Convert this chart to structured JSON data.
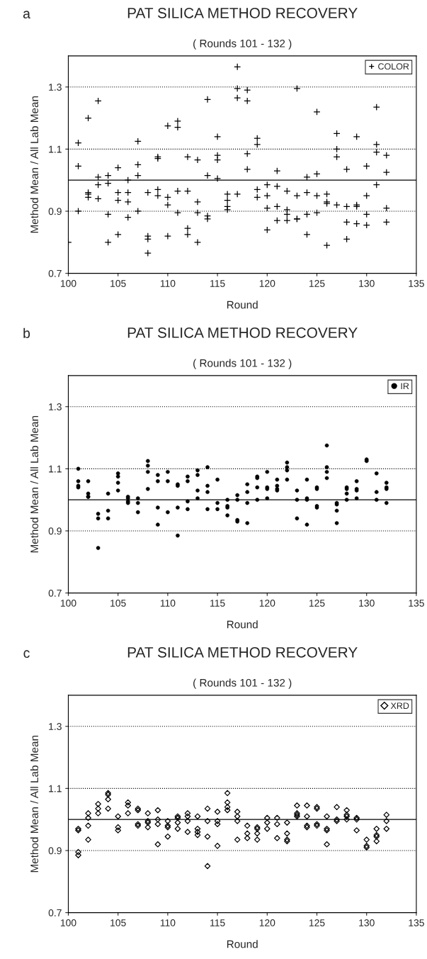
{
  "chart_data": [
    {
      "type": "scatter",
      "title": "PAT SILICA METHOD RECOVERY",
      "subtitle": "( Rounds 101 - 132 )",
      "xlabel": "Round",
      "ylabel": "Method Mean / All Lab Mean",
      "annotations": [
        "a"
      ],
      "xlim": [
        100,
        135
      ],
      "xticks": [
        100,
        105,
        110,
        115,
        120,
        125,
        130,
        135
      ],
      "ylim": [
        0.7,
        1.4
      ],
      "yticks": [
        0.7,
        0.9,
        1.1,
        1.3
      ],
      "grid": "y",
      "legend": "top right",
      "marker": "cross",
      "ref_lines": [
        {
          "axis": "y",
          "value": 1.0,
          "line_style": "solid",
          "color": "#000000"
        }
      ],
      "series": [
        {
          "name": "COLOR",
          "color": "#000000",
          "x": [
            100,
            101,
            101,
            101,
            102,
            102,
            102,
            102,
            103,
            103,
            103,
            103,
            104,
            104,
            104,
            104,
            105,
            105,
            105,
            105,
            106,
            106,
            106,
            106,
            107,
            107,
            107,
            107,
            108,
            108,
            108,
            108,
            109,
            109,
            109,
            109,
            110,
            110,
            110,
            110,
            111,
            111,
            111,
            111,
            112,
            112,
            112,
            112,
            113,
            113,
            113,
            113,
            114,
            114,
            114,
            114,
            115,
            115,
            115,
            115,
            116,
            116,
            116,
            116,
            117,
            117,
            117,
            117,
            118,
            118,
            118,
            118,
            119,
            119,
            119,
            119,
            120,
            120,
            120,
            120,
            121,
            121,
            121,
            121,
            122,
            122,
            122,
            122,
            123,
            123,
            123,
            123,
            124,
            124,
            124,
            124,
            125,
            125,
            125,
            125,
            126,
            126,
            126,
            126,
            127,
            127,
            127,
            127,
            128,
            128,
            128,
            128,
            129,
            129,
            129,
            129,
            130,
            130,
            130,
            130,
            131,
            131,
            131,
            131,
            132,
            132,
            132,
            132
          ],
          "values": [
            0.8,
            1.12,
            1.045,
            0.9,
            1.2,
            0.96,
            0.955,
            0.945,
            1.255,
            1.01,
            0.985,
            0.94,
            1.015,
            0.99,
            0.89,
            0.8,
            1.04,
            0.96,
            0.935,
            0.825,
            1.0,
            0.96,
            0.93,
            0.88,
            1.125,
            1.05,
            1.015,
            0.9,
            0.96,
            0.82,
            0.81,
            0.765,
            1.075,
            1.07,
            0.97,
            0.95,
            1.175,
            0.945,
            0.92,
            0.82,
            1.19,
            1.17,
            0.965,
            0.895,
            1.075,
            0.965,
            0.845,
            0.825,
            1.065,
            0.93,
            0.895,
            0.8,
            1.26,
            1.015,
            0.885,
            0.875,
            1.14,
            1.08,
            1.065,
            1.005,
            0.955,
            0.935,
            0.915,
            0.905,
            1.365,
            1.295,
            1.265,
            0.955,
            1.29,
            1.255,
            1.085,
            1.035,
            1.135,
            1.115,
            0.97,
            0.945,
            0.985,
            0.95,
            0.91,
            0.84,
            1.03,
            0.98,
            0.915,
            0.87,
            0.965,
            0.905,
            0.89,
            0.87,
            1.295,
            0.95,
            0.875,
            0.875,
            1.01,
            0.96,
            0.89,
            0.825,
            1.22,
            1.02,
            0.95,
            0.895,
            0.955,
            0.93,
            0.925,
            0.79,
            1.15,
            1.1,
            1.075,
            0.92,
            1.035,
            0.915,
            0.865,
            0.81,
            1.14,
            0.92,
            0.915,
            0.86,
            1.045,
            0.95,
            0.89,
            0.855,
            1.235,
            1.115,
            1.09,
            0.985,
            1.08,
            1.025,
            0.91,
            0.865
          ]
        }
      ]
    },
    {
      "type": "scatter",
      "title": "PAT SILICA METHOD RECOVERY",
      "subtitle": "( Rounds 101 - 132 )",
      "xlabel": "Round",
      "ylabel": "Method Mean / All Lab Mean",
      "annotations": [
        "b"
      ],
      "xlim": [
        100,
        135
      ],
      "xticks": [
        100,
        105,
        110,
        115,
        120,
        125,
        130,
        135
      ],
      "ylim": [
        0.7,
        1.4
      ],
      "yticks": [
        0.7,
        0.9,
        1.1,
        1.3
      ],
      "grid": "y",
      "legend": "top right",
      "marker": "circle",
      "ref_lines": [
        {
          "axis": "y",
          "value": 1.0,
          "line_style": "solid",
          "color": "#000000"
        }
      ],
      "series": [
        {
          "name": "IR",
          "color": "#000000",
          "x": [
            101,
            101,
            101,
            101,
            102,
            102,
            102,
            102,
            103,
            103,
            103,
            104,
            104,
            104,
            105,
            105,
            105,
            105,
            106,
            106,
            106,
            106,
            107,
            107,
            107,
            108,
            108,
            108,
            108,
            109,
            109,
            109,
            109,
            110,
            110,
            110,
            111,
            111,
            111,
            111,
            112,
            112,
            112,
            112,
            113,
            113,
            113,
            113,
            114,
            114,
            114,
            114,
            115,
            115,
            115,
            116,
            116,
            116,
            116,
            117,
            117,
            117,
            117,
            118,
            118,
            118,
            118,
            119,
            119,
            119,
            119,
            120,
            120,
            120,
            120,
            121,
            121,
            121,
            121,
            122,
            122,
            122,
            122,
            123,
            123,
            123,
            124,
            124,
            124,
            124,
            125,
            125,
            125,
            125,
            126,
            126,
            126,
            126,
            127,
            127,
            127,
            127,
            128,
            128,
            128,
            128,
            129,
            129,
            129,
            129,
            130,
            130,
            131,
            131,
            131,
            132,
            132,
            132,
            132
          ],
          "values": [
            1.1,
            1.06,
            1.045,
            1.04,
            1.06,
            1.02,
            1.01,
            1.01,
            0.955,
            0.94,
            0.845,
            1.02,
            0.965,
            0.94,
            1.085,
            1.075,
            1.055,
            1.03,
            1.01,
            1.005,
            0.995,
            0.99,
            1.005,
            0.99,
            0.96,
            1.125,
            1.11,
            1.09,
            1.035,
            1.08,
            1.06,
            0.975,
            0.92,
            1.09,
            1.06,
            0.96,
            1.05,
            1.045,
            0.975,
            0.885,
            1.075,
            1.06,
            0.995,
            0.97,
            1.095,
            1.08,
            1.03,
            1.005,
            1.105,
            1.045,
            1.025,
            0.97,
            1.065,
            0.99,
            0.97,
            1.0,
            0.98,
            0.975,
            0.95,
            1.015,
            1.0,
            0.935,
            0.93,
            1.05,
            1.025,
            0.99,
            0.925,
            1.075,
            1.07,
            1.04,
            1.0,
            1.09,
            1.04,
            1.035,
            1.005,
            1.065,
            1.045,
            1.035,
            1.03,
            1.12,
            1.105,
            1.095,
            1.065,
            1.03,
            1.0,
            0.94,
            1.065,
            1.005,
            1.0,
            0.92,
            1.04,
            1.035,
            0.98,
            0.975,
            1.175,
            1.105,
            1.09,
            1.07,
            0.99,
            0.985,
            0.965,
            0.925,
            1.04,
            1.035,
            1.02,
            1.0,
            1.06,
            1.035,
            1.03,
            1.005,
            1.13,
            1.125,
            1.085,
            1.025,
            1.0,
            1.055,
            1.04,
            1.035,
            0.99
          ]
        }
      ]
    },
    {
      "type": "scatter",
      "title": "PAT SILICA METHOD RECOVERY",
      "subtitle": "( Rounds 101 - 132 )",
      "xlabel": "Round",
      "ylabel": "Method Mean / All Lab Mean",
      "annotations": [
        "c"
      ],
      "xlim": [
        100,
        135
      ],
      "xticks": [
        100,
        105,
        110,
        115,
        120,
        125,
        130,
        135
      ],
      "ylim": [
        0.7,
        1.4
      ],
      "yticks": [
        0.7,
        0.9,
        1.1,
        1.3
      ],
      "grid": "y",
      "legend": "top right",
      "marker": "diamond",
      "ref_lines": [
        {
          "axis": "y",
          "value": 1.0,
          "line_style": "solid",
          "color": "#000000"
        }
      ],
      "series": [
        {
          "name": "XRD",
          "color": "#000000",
          "x": [
            101,
            101,
            101,
            101,
            102,
            102,
            102,
            102,
            103,
            103,
            103,
            104,
            104,
            104,
            104,
            105,
            105,
            105,
            106,
            106,
            106,
            107,
            107,
            107,
            107,
            108,
            108,
            108,
            108,
            109,
            109,
            109,
            109,
            110,
            110,
            110,
            110,
            111,
            111,
            111,
            111,
            112,
            112,
            112,
            112,
            113,
            113,
            113,
            113,
            114,
            114,
            114,
            114,
            115,
            115,
            115,
            115,
            116,
            116,
            116,
            116,
            117,
            117,
            117,
            117,
            118,
            118,
            118,
            119,
            119,
            119,
            119,
            120,
            120,
            120,
            121,
            121,
            121,
            122,
            122,
            122,
            122,
            123,
            123,
            123,
            123,
            124,
            124,
            124,
            124,
            125,
            125,
            125,
            125,
            126,
            126,
            126,
            126,
            127,
            127,
            127,
            128,
            128,
            128,
            128,
            129,
            129,
            129,
            130,
            130,
            130,
            131,
            131,
            131,
            131,
            132,
            132,
            132
          ],
          "values": [
            0.97,
            0.965,
            0.895,
            0.885,
            1.02,
            1.005,
            0.98,
            0.935,
            1.05,
            1.035,
            1.02,
            1.085,
            1.08,
            1.065,
            1.035,
            1.01,
            0.975,
            0.965,
            1.055,
            1.045,
            1.02,
            1.035,
            1.03,
            0.985,
            0.98,
            1.02,
            0.995,
            0.99,
            0.975,
            1.03,
            1.0,
            0.985,
            0.92,
            0.995,
            0.98,
            0.975,
            0.945,
            1.01,
            1.005,
            0.99,
            0.97,
            1.02,
            1.01,
            0.995,
            0.96,
            1.01,
            0.97,
            0.96,
            0.95,
            1.035,
            0.995,
            0.945,
            0.85,
            1.025,
            0.995,
            0.985,
            0.915,
            1.085,
            1.055,
            1.04,
            1.03,
            1.025,
            1.01,
            0.995,
            0.935,
            0.98,
            0.955,
            0.94,
            0.975,
            0.97,
            0.955,
            0.935,
            1.005,
            0.99,
            0.97,
            1.005,
            0.985,
            0.94,
            0.99,
            0.955,
            0.935,
            0.93,
            1.045,
            1.02,
            1.015,
            1.01,
            1.045,
            1.01,
            0.98,
            0.975,
            1.04,
            1.035,
            0.985,
            0.98,
            1.01,
            0.97,
            0.965,
            0.92,
            1.04,
            1.0,
            0.995,
            1.03,
            1.015,
            1.01,
            1.0,
            1.005,
            1.0,
            0.965,
            0.935,
            0.915,
            0.91,
            0.97,
            0.95,
            0.945,
            0.93,
            1.015,
            0.995,
            0.97
          ]
        }
      ]
    }
  ]
}
